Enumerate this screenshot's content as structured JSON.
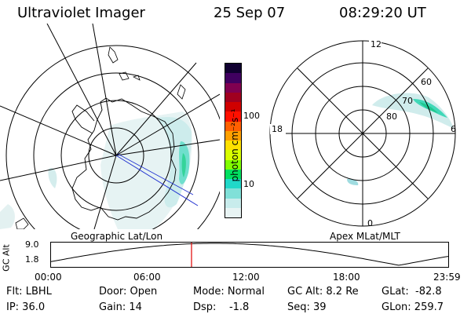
{
  "header": {
    "instrument": "Ultraviolet Imager",
    "date": "25 Sep 07",
    "time": "08:29:20 UT"
  },
  "left_map": {
    "caption": "Geographic Lat/Lon"
  },
  "right_map": {
    "caption": "Apex MLat/MLT",
    "mlt_labels": [
      "12",
      "18",
      "6",
      "0"
    ],
    "lat_labels": [
      "60",
      "70",
      "80"
    ]
  },
  "colorbar": {
    "unit_label": "photon cm⁻²s⁻¹",
    "ticks": [
      "100",
      "10"
    ],
    "colors": [
      "#e8f4f4",
      "#c8ecec",
      "#80e0d8",
      "#20d8c8",
      "#00e060",
      "#80ff00",
      "#d8ff00",
      "#ffe000",
      "#ffa000",
      "#ff6000",
      "#ff1000",
      "#d00000",
      "#a00020",
      "#800050",
      "#400060",
      "#100030"
    ]
  },
  "timeline": {
    "ylabel": "GC Alt",
    "ticks_y": [
      "9.0",
      "1.8"
    ],
    "ticks_x": [
      "00:00",
      "06:00",
      "12:00",
      "18:00",
      "23:59"
    ],
    "marker_time_fraction": 0.3537
  },
  "footer": {
    "flt": "Flt: LBHL",
    "ip": "IP: 36.0",
    "door": "Door: Open",
    "gain": "Gain: 14",
    "mode": "Mode: Normal",
    "dsp": "Dsp:    -1.8",
    "gcalt": "GC Alt: 8.2 Re",
    "seq": "Seq: 39",
    "glat": "GLat:  -82.8",
    "glon": "GLon: 259.7"
  }
}
